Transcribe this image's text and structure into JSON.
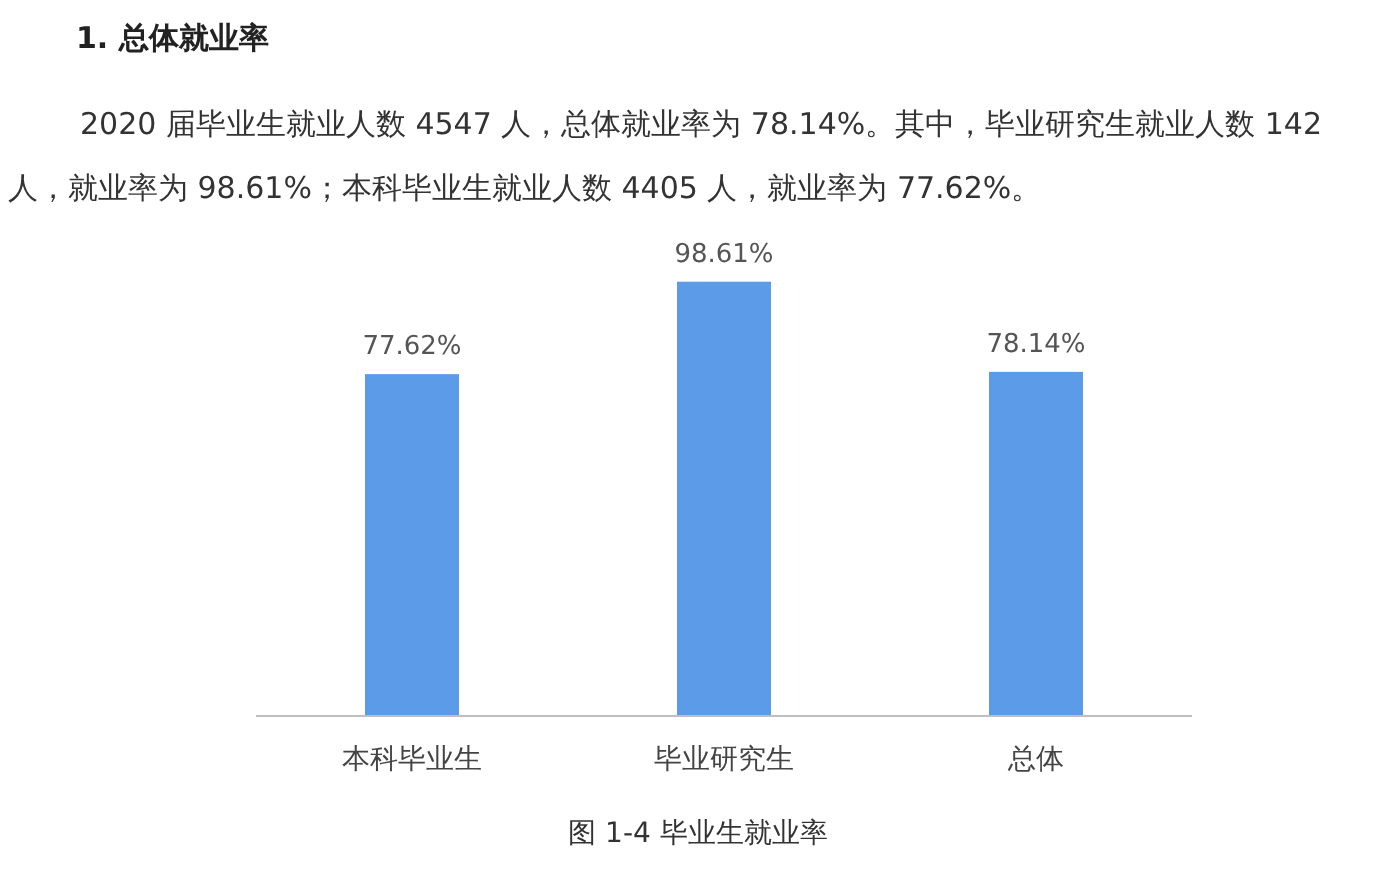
{
  "chart_data": {
    "type": "bar",
    "title": "1. 总体就业率",
    "subtitle": "2020 届毕业生就业人数 4547 人，总体就业率为 78.14%。其中，毕业研究生就业人数 142 人，就业率为 98.61%；本科毕业生就业人数 4405 人，就业率为 77.62%。",
    "categories": [
      "本科毕业生",
      "毕业研究生",
      "总体"
    ],
    "values": [
      77.62,
      98.61,
      78.14
    ],
    "value_labels": [
      "77.62%",
      "98.61%",
      "78.14%"
    ],
    "color": "#5b9be8",
    "annotations": [
      "图 1-4 毕业生就业率"
    ]
  }
}
